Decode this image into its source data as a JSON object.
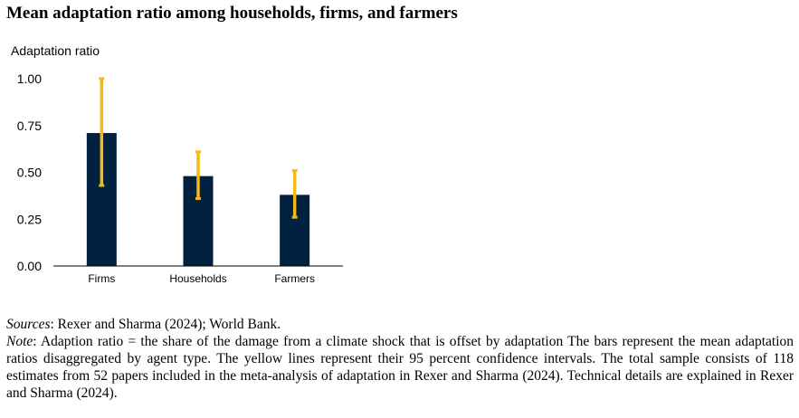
{
  "title": "Mean adaptation ratio among households, firms, and farmers",
  "colors": {
    "bar": "#00213f",
    "error_bar": "#f4b819",
    "axis": "#000000"
  },
  "chart_data": {
    "type": "bar",
    "title": "Mean adaptation ratio among households, firms, and farmers",
    "ylabel": "Adaptation ratio",
    "xlabel": "",
    "ylim": [
      0,
      1
    ],
    "yticks": [
      "0.00",
      "0.25",
      "0.50",
      "0.75",
      "1.00"
    ],
    "yticks_values": [
      0,
      0.25,
      0.5,
      0.75,
      1
    ],
    "categories": [
      "Firms",
      "Households",
      "Farmers"
    ],
    "values": [
      0.71,
      0.48,
      0.38
    ],
    "error_bars": [
      {
        "low": 0.43,
        "high": 1.0
      },
      {
        "low": 0.36,
        "high": 0.61
      },
      {
        "low": 0.26,
        "high": 0.51
      }
    ],
    "grid": false
  },
  "notes": {
    "sources_label": "Sources",
    "sources_text": ": Rexer and Sharma (2024); World Bank.",
    "note_label": "Note",
    "note_text": ": Adaption ratio = the share of the damage from a climate shock that is offset by adaptation The bars represent the mean adaptation ratios disaggregated by agent type. The yellow lines represent their 95 percent confidence intervals. The total sample consists of 118 estimates from 52 papers included in the meta-analysis of adaptation in Rexer and Sharma (2024). Technical details are explained in Rexer and Sharma (2024)."
  }
}
